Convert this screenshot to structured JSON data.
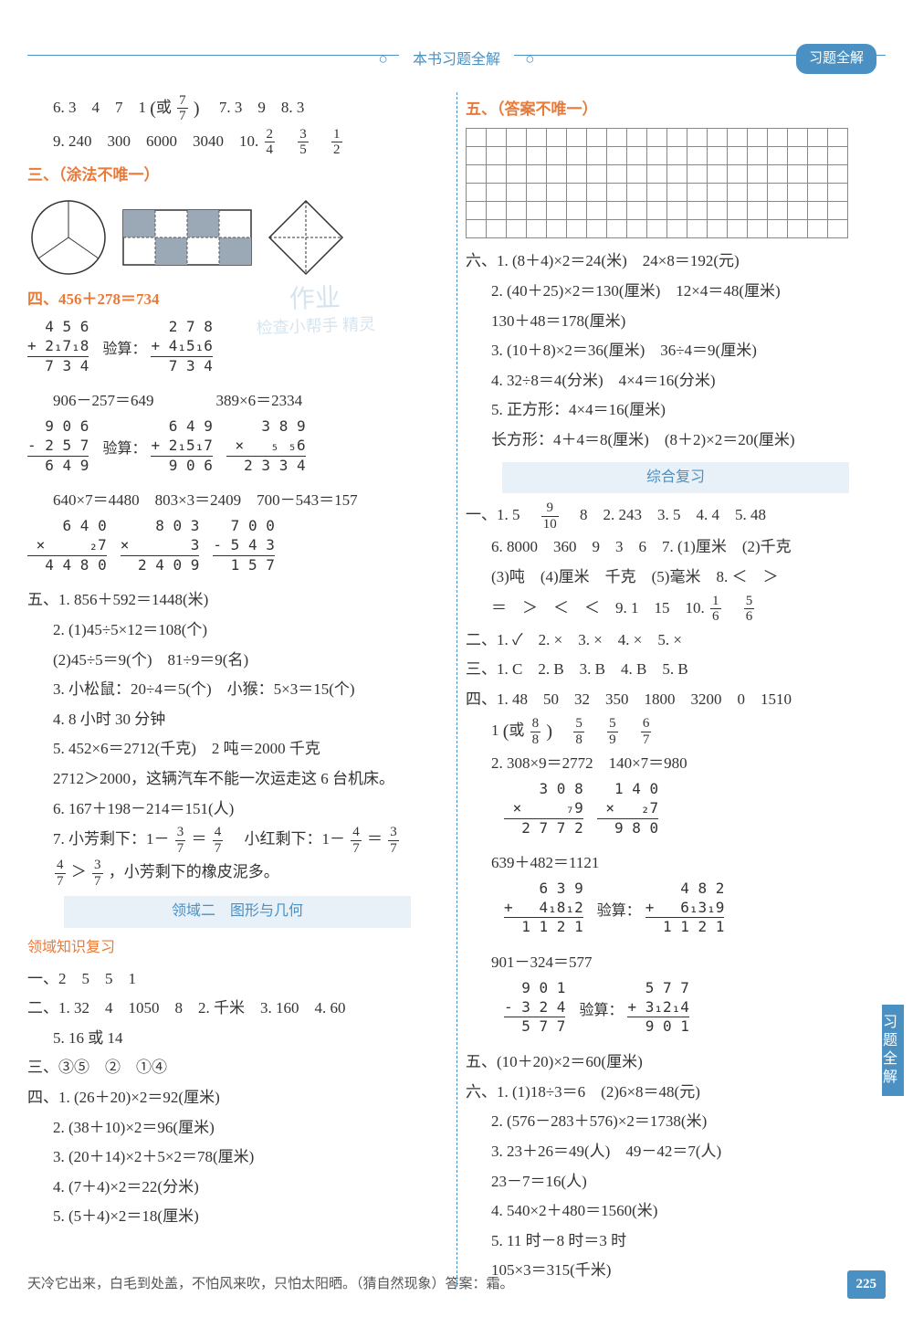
{
  "header": {
    "title": "本书习题全解",
    "badge": "习题全解"
  },
  "page_number": "225",
  "footer_riddle": "天冷它出来，白毛到处盖，不怕风来吹，只怕太阳晒。（猜自然现象）答案：霜。",
  "side_tab": "习题全解",
  "watermark": {
    "top": "作业",
    "bottom": "检查小帮手 精灵"
  },
  "left": {
    "l6_prefix": "6. 3　4　7　1",
    "l6_or": "或",
    "l6_frac": {
      "n": "7",
      "d": "7"
    },
    "l6_suffix": "　7. 3　9　8. 3",
    "l9": "9. 240　300　6000　3040　10.",
    "l10_fracs": [
      {
        "n": "2",
        "d": "4"
      },
      {
        "n": "3",
        "d": "5"
      },
      {
        "n": "1",
        "d": "2"
      }
    ],
    "sec3": "三、（涂法不唯一）",
    "sec4": "四、456＋278＝734",
    "calc_a": {
      "rows": [
        "  4 5 6",
        "+ 2₁7₁8",
        "  7 3 4"
      ]
    },
    "calc_a_check": "验算：",
    "calc_a2": {
      "rows": [
        "  2 7 8",
        "+ 4₁5₁6",
        "  7 3 4"
      ]
    },
    "eq_b": "906－257＝649　　　　389×6＝2334",
    "calc_b": {
      "rows": [
        "  9 0 6",
        "- 2 5 7",
        "  6 4 9"
      ]
    },
    "calc_b_check": "验算：",
    "calc_b2": {
      "rows": [
        "  6 4 9",
        "+ 2₁5₁7",
        "  9 0 6"
      ]
    },
    "calc_b3": {
      "rows": [
        "    3 8 9",
        "×   ₅ ₅6",
        "  2 3 3 4"
      ]
    },
    "eq_c": "640×7＝4480　803×3＝2409　700－543＝157",
    "calc_c": {
      "rows": [
        "    6 4 0",
        "×     ₂7",
        "  4 4 8 0"
      ]
    },
    "calc_c2": {
      "rows": [
        "    8 0 3",
        "×       3",
        "  2 4 0 9"
      ]
    },
    "calc_c3": {
      "rows": [
        "  7 0 0",
        "- 5 4 3",
        "  1 5 7"
      ]
    },
    "sec5_1": "五、1. 856＋592＝1448(米)",
    "sec5_2a": "2. (1)45÷5×12＝108(个)",
    "sec5_2b": "(2)45÷5＝9(个)　81÷9＝9(名)",
    "sec5_3": "3. 小松鼠：20÷4＝5(个)　小猴：5×3＝15(个)",
    "sec5_4": "4. 8 小时 30 分钟",
    "sec5_5a": "5. 452×6＝2712(千克)　2 吨＝2000 千克",
    "sec5_5b": "2712＞2000，这辆汽车不能一次运走这 6 台机床。",
    "sec5_6": "6. 167＋198－214＝151(人)",
    "sec5_7a_prefix": "7. 小芳剩下：1－",
    "sec5_7a_f1": {
      "n": "3",
      "d": "7"
    },
    "sec5_7a_eq": "＝",
    "sec5_7a_f2": {
      "n": "4",
      "d": "7"
    },
    "sec5_7a_mid": "　小红剩下：1－",
    "sec5_7a_f3": {
      "n": "4",
      "d": "7"
    },
    "sec5_7a_f4": {
      "n": "3",
      "d": "7"
    },
    "sec5_7b_f1": {
      "n": "4",
      "d": "7"
    },
    "sec5_7b_gt": "＞",
    "sec5_7b_f2": {
      "n": "3",
      "d": "7"
    },
    "sec5_7b_suffix": "，小芳剩下的橡皮泥多。",
    "region2": "领域二　图形与几何",
    "region2_sub": "领域知识复习",
    "r2_1": "一、2　5　5　1",
    "r2_2a": "二、1. 32　4　1050　8　2. 千米　3. 160　4. 60",
    "r2_2b": "5. 16 或 14",
    "r2_3": "三、③⑤　②　①④",
    "r2_4_1": "四、1. (26＋20)×2＝92(厘米)",
    "r2_4_2": "2. (38＋10)×2＝96(厘米)",
    "r2_4_3": "3. (20＋14)×2＋5×2＝78(厘米)",
    "r2_4_4": "4. (7＋4)×2＝22(分米)",
    "r2_4_5": "5. (5＋4)×2＝18(厘米)"
  },
  "right": {
    "sec5": "五、（答案不唯一）",
    "grid": {
      "rows": 6,
      "cols": 19
    },
    "sec6_1": "六、1. (8＋4)×2＝24(米)　24×8＝192(元)",
    "sec6_2a": "2. (40＋25)×2＝130(厘米)　12×4＝48(厘米)",
    "sec6_2b": "130＋48＝178(厘米)",
    "sec6_3": "3. (10＋8)×2＝36(厘米)　36÷4＝9(厘米)",
    "sec6_4": "4. 32÷8＝4(分米)　4×4＝16(分米)",
    "sec6_5a": "5. 正方形：4×4＝16(厘米)",
    "sec6_5b": "长方形：4＋4＝8(厘米)　(8＋2)×2＝20(厘米)",
    "region3": "综合复习",
    "r3_1a_prefix": "一、1. 5　",
    "r3_1a_f": {
      "n": "9",
      "d": "10"
    },
    "r3_1a_suffix": "　8　2. 243　3. 5　4. 4　5. 48",
    "r3_1b": "6. 8000　360　9　3　6　7. (1)厘米　(2)千克",
    "r3_1c": "(3)吨　(4)厘米　千克　(5)毫米　8. ＜　＞",
    "r3_1d_prefix": "＝　＞　＜　＜　9. 1　15　10.",
    "r3_1d_f1": {
      "n": "1",
      "d": "6"
    },
    "r3_1d_f2": {
      "n": "5",
      "d": "6"
    },
    "r3_2": "二、1. ✓　2. ×　3. ×　4. ×　5. ×",
    "r3_3": "三、1. C　2. B　3. B　4. B　5. B",
    "r3_4_1a": "四、1. 48　50　32　350　1800　3200　0　1510",
    "r3_4_1b_prefix": "1",
    "r3_4_1b_or": "或",
    "r3_4_1b_f0": {
      "n": "8",
      "d": "8"
    },
    "r3_4_1b_fracs": [
      {
        "n": "5",
        "d": "8"
      },
      {
        "n": "5",
        "d": "9"
      },
      {
        "n": "6",
        "d": "7"
      }
    ],
    "r3_4_2": "2. 308×9＝2772　140×7＝980",
    "calc_d1": {
      "rows": [
        "    3 0 8",
        "×     ₇9",
        "  2 7 7 2"
      ]
    },
    "calc_d2": {
      "rows": [
        "  1 4 0",
        "×   ₂7",
        "  9 8 0"
      ]
    },
    "eq_e": "639＋482＝1121",
    "calc_e1": {
      "rows": [
        "    6 3 9",
        "+   4₁8₁2",
        "  1 1 2 1"
      ]
    },
    "calc_e_check": "验算：",
    "calc_e2": {
      "rows": [
        "    4 8 2",
        "+   6₁3₁9",
        "  1 1 2 1"
      ]
    },
    "eq_f": "901－324＝577",
    "calc_f1": {
      "rows": [
        "  9 0 1",
        "- 3 2 4",
        "  5 7 7"
      ]
    },
    "calc_f_check": "验算：",
    "calc_f2": {
      "rows": [
        "  5 7 7",
        "+ 3₁2₁4",
        "  9 0 1"
      ]
    },
    "r3_5": "五、(10＋20)×2＝60(厘米)",
    "r3_6_1": "六、1. (1)18÷3＝6　(2)6×8＝48(元)",
    "r3_6_2": "2. (576－283＋576)×2＝1738(米)",
    "r3_6_3a": "3. 23＋26＝49(人)　49－42＝7(人)",
    "r3_6_3b": "23－7＝16(人)",
    "r3_6_4": "4. 540×2＋480＝1560(米)",
    "r3_6_5a": "5. 11 时－8 时＝3 时",
    "r3_6_5b": "105×3＝315(千米)"
  },
  "diagrams": {
    "circle": {
      "fill": "#ffffff",
      "stroke": "#333333"
    },
    "grid_square": {
      "fill": "#9ba8b5",
      "stroke": "#333333",
      "dash": "#555555"
    },
    "diamond": {
      "stroke": "#333333"
    }
  }
}
